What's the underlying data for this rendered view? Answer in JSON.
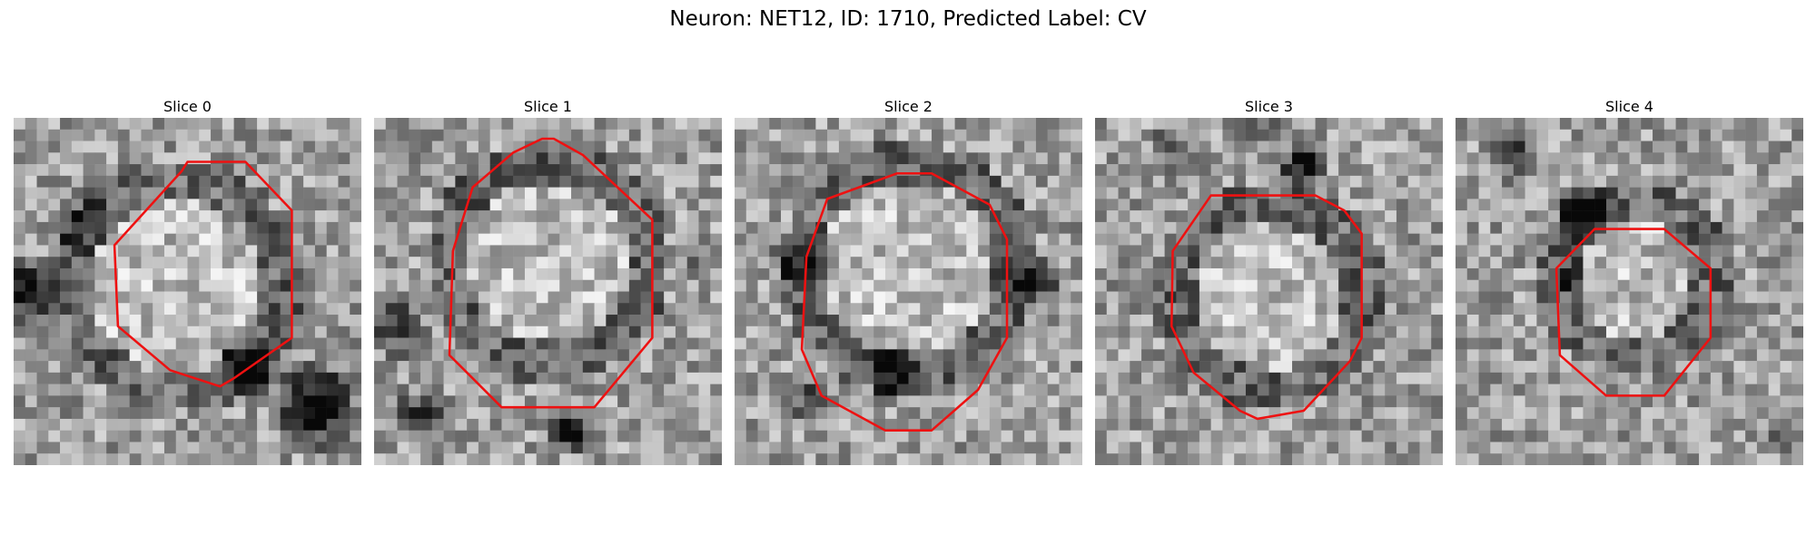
{
  "figure": {
    "title": "Neuron: NET12, ID: 1710, Predicted Label: CV",
    "contour_color": "#ee1111",
    "image_colormap": "gray",
    "grid_size": 30
  },
  "slices": [
    {
      "title": "Slice 0",
      "cell_center": [
        14.0,
        14.5
      ],
      "cell_radius": 9.5,
      "dark_blobs": [
        [
          1,
          15,
          3.5,
          0.8
        ],
        [
          26,
          25,
          4.5,
          0.85
        ],
        [
          20,
          22,
          3,
          0.7
        ],
        [
          6,
          9,
          3,
          0.4
        ]
      ],
      "contour": [
        [
          15,
          3.8
        ],
        [
          20,
          3.8
        ],
        [
          24,
          8
        ],
        [
          24,
          19
        ],
        [
          19,
          22.5
        ],
        [
          17.8,
          23.2
        ],
        [
          13.5,
          21.8
        ],
        [
          9,
          18
        ],
        [
          8.7,
          11
        ],
        [
          14.5,
          4.6
        ]
      ]
    },
    {
      "title": "Slice 1",
      "cell_center": [
        15.0,
        12.5
      ],
      "cell_radius": 9.0,
      "dark_blobs": [
        [
          2,
          18,
          3,
          0.6
        ],
        [
          17,
          27,
          2.5,
          0.6
        ],
        [
          28,
          12,
          2,
          0.3
        ],
        [
          4,
          26,
          3,
          0.5
        ]
      ],
      "contour": [
        [
          14.5,
          1.8
        ],
        [
          15.5,
          1.8
        ],
        [
          18,
          3.2
        ],
        [
          21,
          6
        ],
        [
          24,
          8.8
        ],
        [
          24,
          19
        ],
        [
          19,
          25
        ],
        [
          11,
          25
        ],
        [
          6.5,
          20.5
        ],
        [
          6.8,
          11.5
        ],
        [
          8.5,
          6
        ],
        [
          12,
          3
        ]
      ]
    },
    {
      "title": "Slice 2",
      "cell_center": [
        15.0,
        13.0
      ],
      "cell_radius": 9.5,
      "dark_blobs": [
        [
          6,
          12,
          3.5,
          0.4
        ],
        [
          26,
          14,
          3,
          0.5
        ],
        [
          6,
          24,
          2.5,
          0.4
        ],
        [
          14,
          22,
          3,
          0.5
        ]
      ],
      "contour": [
        [
          14,
          4.8
        ],
        [
          17,
          4.8
        ],
        [
          22,
          7.5
        ],
        [
          23.5,
          10.5
        ],
        [
          23.5,
          19
        ],
        [
          21,
          23.5
        ],
        [
          17,
          27
        ],
        [
          13,
          27
        ],
        [
          7.5,
          24
        ],
        [
          5.8,
          20
        ],
        [
          6.2,
          12
        ],
        [
          8,
          7
        ]
      ]
    },
    {
      "title": "Slice 3",
      "cell_center": [
        15.0,
        15.5
      ],
      "cell_radius": 8.5,
      "dark_blobs": [
        [
          18,
          4,
          2.5,
          0.8
        ],
        [
          7,
          3,
          3,
          0.4
        ],
        [
          14,
          1,
          2.5,
          0.4
        ]
      ],
      "contour": [
        [
          10,
          6.7
        ],
        [
          19,
          6.7
        ],
        [
          21.5,
          8
        ],
        [
          23,
          10
        ],
        [
          23,
          19
        ],
        [
          22,
          21
        ],
        [
          18,
          25.3
        ],
        [
          14,
          26
        ],
        [
          12.5,
          25.3
        ],
        [
          8.5,
          22
        ],
        [
          6.6,
          18
        ],
        [
          6.7,
          11.5
        ]
      ]
    },
    {
      "title": "Slice 4",
      "cell_center": [
        15.5,
        14.0
      ],
      "cell_radius": 7.0,
      "dark_blobs": [
        [
          11,
          8,
          3,
          0.8
        ],
        [
          5,
          3,
          3,
          0.5
        ],
        [
          10,
          14,
          2,
          0.3
        ],
        [
          28,
          27,
          2,
          0.4
        ]
      ],
      "contour": [
        [
          12,
          9.6
        ],
        [
          18,
          9.6
        ],
        [
          22,
          13
        ],
        [
          22,
          19
        ],
        [
          18,
          24
        ],
        [
          13,
          24
        ],
        [
          9,
          20.5
        ],
        [
          8.7,
          13
        ]
      ]
    }
  ]
}
